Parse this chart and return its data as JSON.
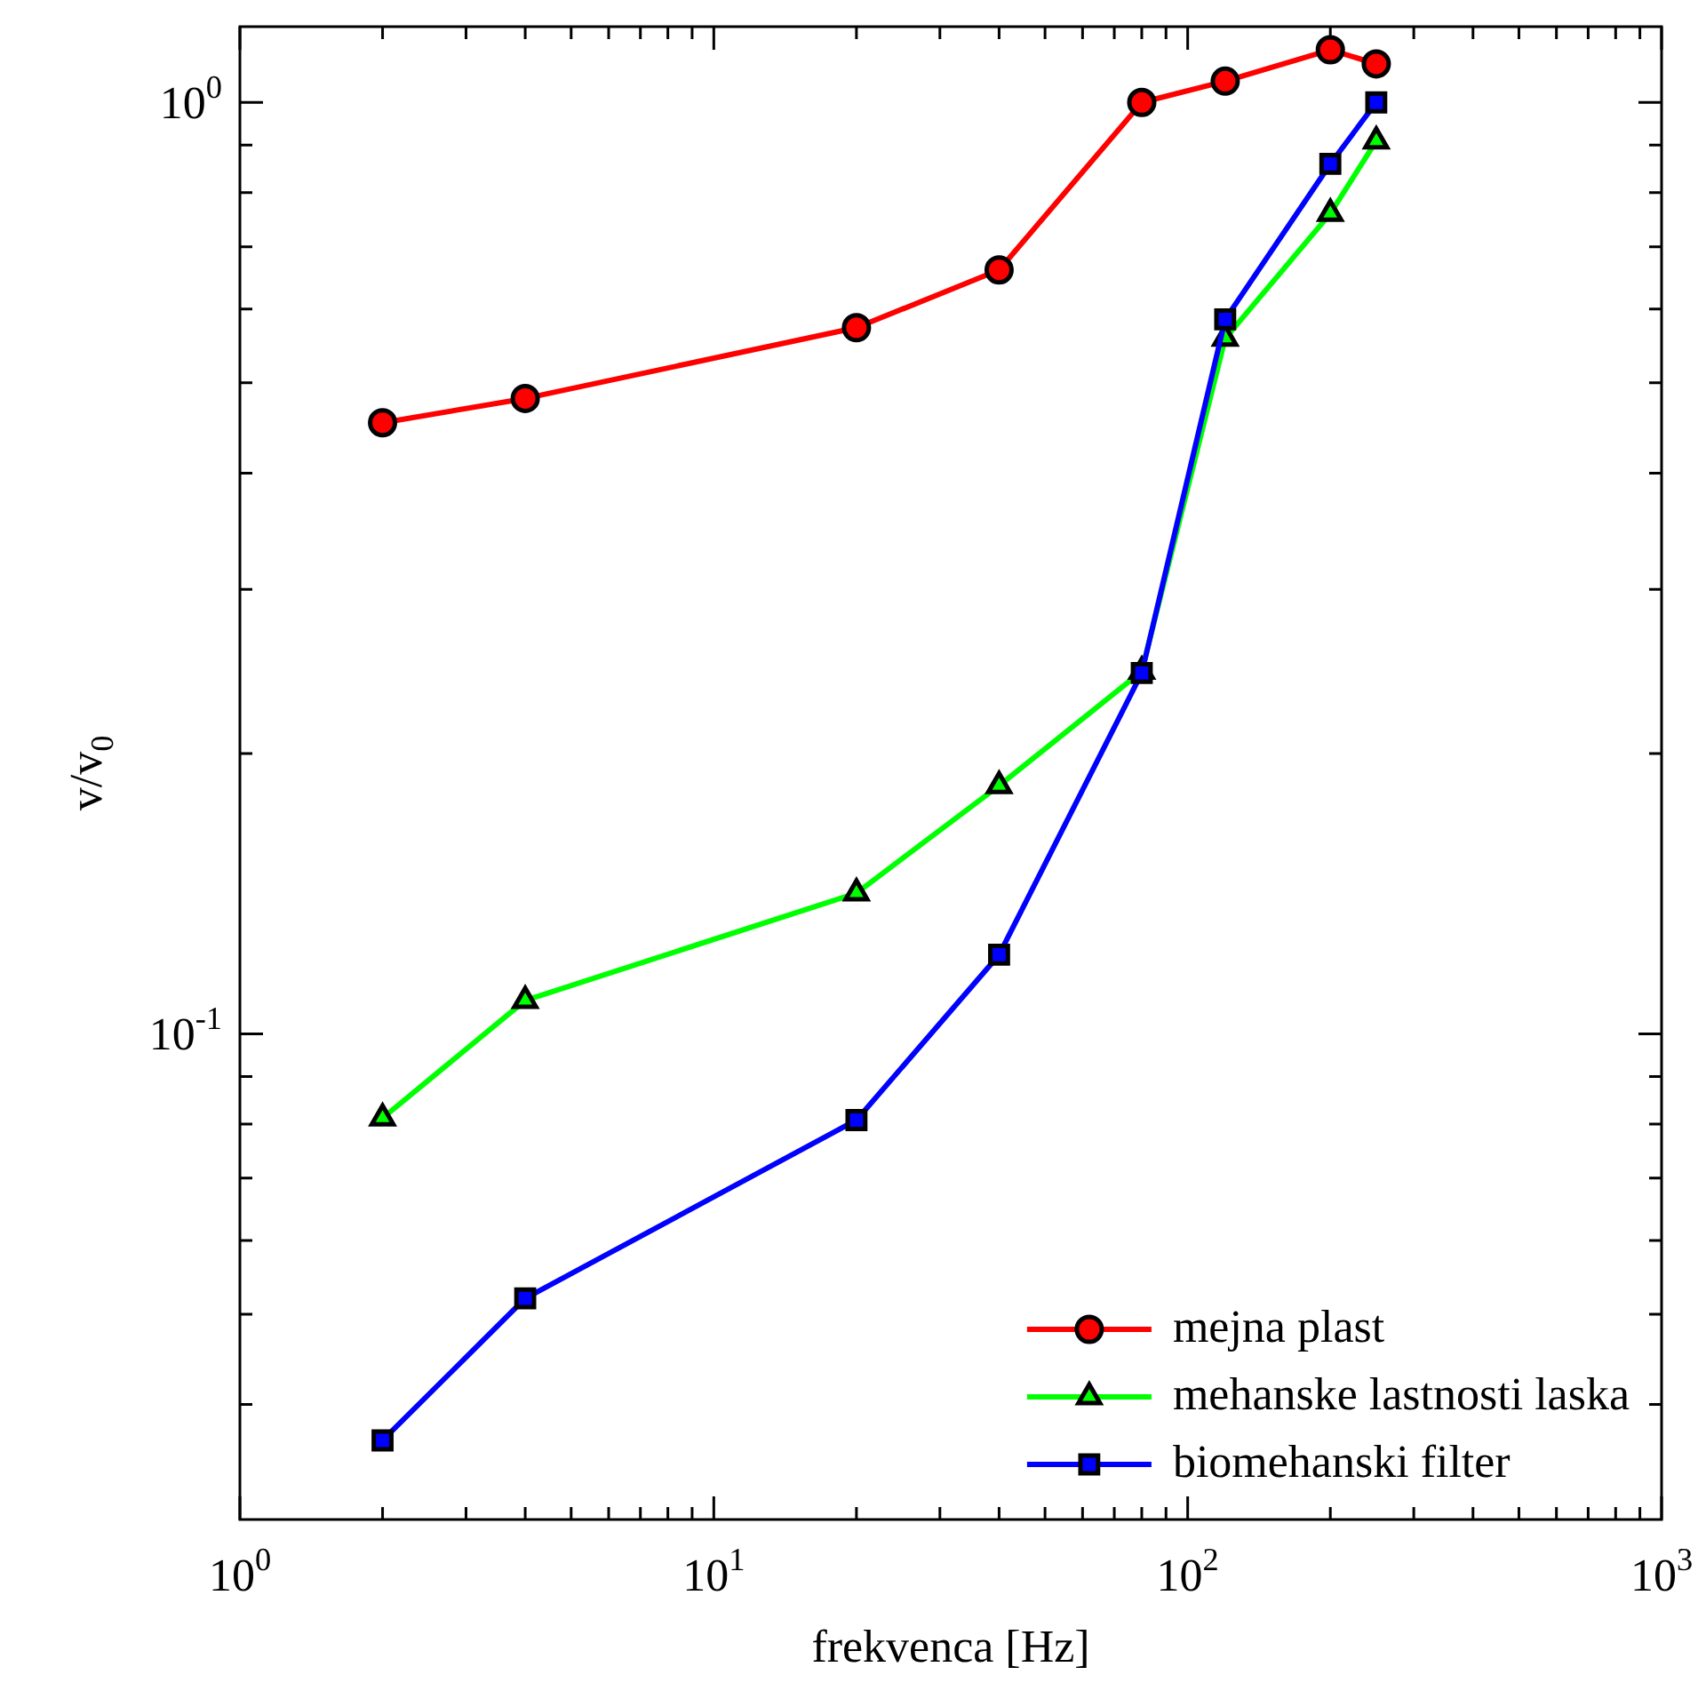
{
  "chart_data": {
    "type": "line",
    "xlabel": "frekvenca [Hz]",
    "ylabel": "v/v$_{0}$",
    "log": "xy",
    "x": [
      2,
      4,
      20,
      40,
      80,
      120,
      200,
      250
    ],
    "xlim": [
      1,
      1000
    ],
    "ylim": [
      0.0301,
      1.206
    ],
    "xticks": [
      {
        "value": 1,
        "label": "10$^{0}$"
      },
      {
        "value": 2,
        "label": null
      },
      {
        "value": 3,
        "label": null
      },
      {
        "value": 4,
        "label": null
      },
      {
        "value": 5,
        "label": null
      },
      {
        "value": 6,
        "label": null
      },
      {
        "value": 7,
        "label": null
      },
      {
        "value": 8,
        "label": null
      },
      {
        "value": 9,
        "label": null
      },
      {
        "value": 10,
        "label": "10$^{1}$"
      },
      {
        "value": 20,
        "label": null
      },
      {
        "value": 30,
        "label": null
      },
      {
        "value": 40,
        "label": null
      },
      {
        "value": 50,
        "label": null
      },
      {
        "value": 60,
        "label": null
      },
      {
        "value": 70,
        "label": null
      },
      {
        "value": 80,
        "label": null
      },
      {
        "value": 90,
        "label": null
      },
      {
        "value": 100,
        "label": "10$^{2}$"
      },
      {
        "value": 200,
        "label": null
      },
      {
        "value": 300,
        "label": null
      },
      {
        "value": 400,
        "label": null
      },
      {
        "value": 500,
        "label": null
      },
      {
        "value": 600,
        "label": null
      },
      {
        "value": 700,
        "label": null
      },
      {
        "value": 800,
        "label": null
      },
      {
        "value": 900,
        "label": null
      },
      {
        "value": 1000,
        "label": "10$^{3}$"
      }
    ],
    "yticks": [
      {
        "value": 0.04,
        "label": null
      },
      {
        "value": 0.05,
        "label": null
      },
      {
        "value": 0.06,
        "label": null
      },
      {
        "value": 0.07,
        "label": null
      },
      {
        "value": 0.08,
        "label": null
      },
      {
        "value": 0.09,
        "label": null
      },
      {
        "value": 0.1,
        "label": "10$^{-1}$"
      },
      {
        "value": 0.2,
        "label": null
      },
      {
        "value": 0.3,
        "label": null
      },
      {
        "value": 0.4,
        "label": null
      },
      {
        "value": 0.5,
        "label": null
      },
      {
        "value": 0.6,
        "label": null
      },
      {
        "value": 0.7,
        "label": null
      },
      {
        "value": 0.8,
        "label": null
      },
      {
        "value": 0.9,
        "label": null
      },
      {
        "value": 1,
        "label": "10$^{0}$"
      }
    ],
    "grid": false,
    "legend": "bottom right",
    "series": [
      {
        "name": "mejna plast",
        "color": "#ff0000",
        "marker": "circle",
        "values": [
          0.453,
          0.481,
          0.573,
          0.661,
          1.0,
          1.054,
          1.139,
          1.1
        ]
      },
      {
        "name": "mehanske lastnosti laska",
        "color": "#00ff00",
        "marker": "triangle",
        "values": [
          0.0812,
          0.1086,
          0.1416,
          0.1847,
          0.245,
          0.558,
          0.76,
          0.909
        ]
      },
      {
        "name": "biomehanski filter",
        "color": "#0000ff",
        "marker": "square",
        "values": [
          0.0366,
          0.052,
          0.0808,
          0.1216,
          0.244,
          0.585,
          0.859,
          1.0
        ]
      }
    ]
  }
}
